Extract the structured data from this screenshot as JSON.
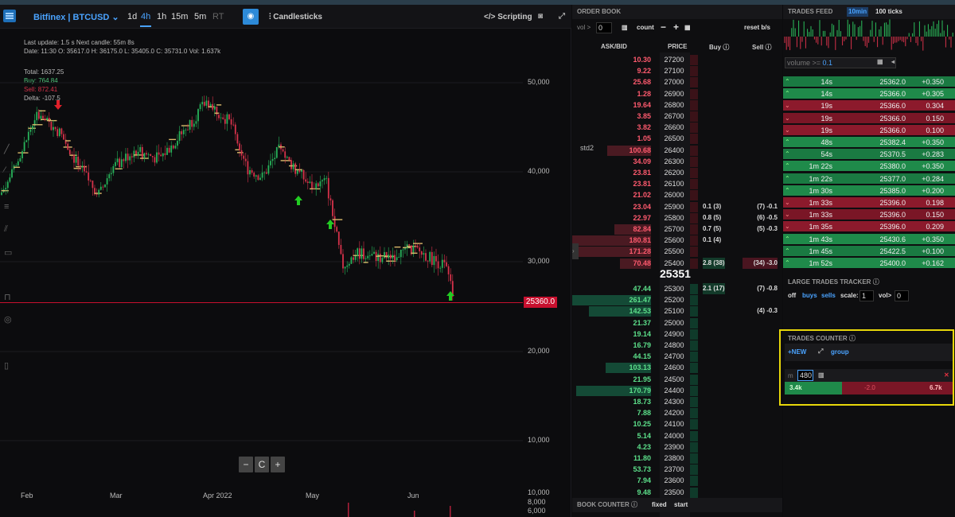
{
  "chart": {
    "symbol": "Bitfinex | BTCUSD",
    "timeframes": [
      {
        "label": "1d",
        "active": false
      },
      {
        "label": "4h",
        "active": true
      },
      {
        "label": "1h",
        "active": false
      },
      {
        "label": "15m",
        "active": false
      },
      {
        "label": "5m",
        "active": false
      },
      {
        "label": "RT",
        "active": false
      }
    ],
    "chart_type": "Candlesticks",
    "scripting": "Scripting",
    "last_update": "Last update: 1.5 s   Next candle: 55m 8s",
    "ohlc": "Date: 11:30 O: 35617.0 H: 36175.0 L: 35405.0 C: 35731.0 Vol: 1.637k",
    "total": "Total: 1637.25",
    "buy": "Buy: 764.84",
    "sell": "Sell: 872.41",
    "delta": "Delta: -107.5",
    "y_labels": [
      "50,000",
      "40,000",
      "30,000",
      "20,000",
      "10,000",
      "10,000",
      "8,000",
      "6,000"
    ],
    "x_labels": [
      "Feb",
      "Mar",
      "Apr 2022",
      "May",
      "Jun"
    ],
    "current_price": "25360.0",
    "zoom": [
      "−",
      "C",
      "+"
    ],
    "colors": {
      "up": "#27b35a",
      "down": "#d6324a",
      "price_line": "#c8102e",
      "accent": "#4aa3ff"
    }
  },
  "orderbook": {
    "title": "ORDER BOOK",
    "vol_label": "vol >",
    "vol_value": "0",
    "count_label": "count",
    "minus": "−",
    "plus": "+",
    "reset": "reset b/s",
    "headers": {
      "size": "ASK/BID",
      "price": "PRICE",
      "buy": "Buy",
      "sell": "Sell"
    },
    "std_label": "std2",
    "mid_price": "25351",
    "asks": [
      {
        "size": "10.30",
        "price": "27200"
      },
      {
        "size": "9.22",
        "price": "27100"
      },
      {
        "size": "25.68",
        "price": "27000"
      },
      {
        "size": "1.28",
        "price": "26900"
      },
      {
        "size": "19.64",
        "price": "26800"
      },
      {
        "size": "3.85",
        "price": "26700"
      },
      {
        "size": "3.82",
        "price": "26600"
      },
      {
        "size": "1.05",
        "price": "26500"
      },
      {
        "size": "100.68",
        "price": "26400"
      },
      {
        "size": "34.09",
        "price": "26300"
      },
      {
        "size": "23.81",
        "price": "26200"
      },
      {
        "size": "23.81",
        "price": "26100"
      },
      {
        "size": "21.02",
        "price": "26000"
      },
      {
        "size": "23.04",
        "price": "25900",
        "buy": "0.1 (3)",
        "sell": "(7) -0.1"
      },
      {
        "size": "22.97",
        "price": "25800",
        "buy": "0.8 (5)",
        "sell": "(6) -0.5"
      },
      {
        "size": "82.84",
        "price": "25700",
        "buy": "0.7 (5)",
        "sell": "(5) -0.3"
      },
      {
        "size": "180.81",
        "price": "25600",
        "buy": "0.1 (4)"
      },
      {
        "size": "171.28",
        "price": "25500"
      },
      {
        "size": "70.48",
        "price": "25400",
        "buy": "2.8 (38)",
        "sell": "(34) -3.0"
      }
    ],
    "bids": [
      {
        "size": "47.44",
        "price": "25300",
        "buy": "2.1 (17)",
        "sell": "(7) -0.8"
      },
      {
        "size": "261.47",
        "price": "25200"
      },
      {
        "size": "142.53",
        "price": "25100",
        "sell": "(4) -0.3"
      },
      {
        "size": "21.37",
        "price": "25000"
      },
      {
        "size": "19.14",
        "price": "24900"
      },
      {
        "size": "16.79",
        "price": "24800"
      },
      {
        "size": "44.15",
        "price": "24700"
      },
      {
        "size": "103.13",
        "price": "24600"
      },
      {
        "size": "21.95",
        "price": "24500"
      },
      {
        "size": "170.79",
        "price": "24400"
      },
      {
        "size": "18.73",
        "price": "24300"
      },
      {
        "size": "7.88",
        "price": "24200"
      },
      {
        "size": "10.25",
        "price": "24100"
      },
      {
        "size": "5.14",
        "price": "24000"
      },
      {
        "size": "4.23",
        "price": "23900"
      },
      {
        "size": "11.80",
        "price": "23800"
      },
      {
        "size": "53.73",
        "price": "23700"
      },
      {
        "size": "7.94",
        "price": "23600"
      },
      {
        "size": "9.48",
        "price": "23500"
      }
    ],
    "book_counter": "BOOK COUNTER",
    "fixed": "fixed",
    "start": "start"
  },
  "trades": {
    "title": "TRADES FEED",
    "tabs": [
      "10min",
      "100 ticks"
    ],
    "volume_label": "volume >=",
    "volume_value": "0.1",
    "rows": [
      {
        "t": "14s",
        "p": "25362.0",
        "q": "+0.350",
        "side": "buy"
      },
      {
        "t": "14s",
        "p": "25366.0",
        "q": "+0.305",
        "side": "buy"
      },
      {
        "t": "19s",
        "p": "25366.0",
        "q": "0.304",
        "side": "sell"
      },
      {
        "t": "19s",
        "p": "25366.0",
        "q": "0.150",
        "side": "sell"
      },
      {
        "t": "19s",
        "p": "25366.0",
        "q": "0.100",
        "side": "sell"
      },
      {
        "t": "48s",
        "p": "25382.4",
        "q": "+0.350",
        "side": "buy"
      },
      {
        "t": "54s",
        "p": "25370.5",
        "q": "+0.283",
        "side": "buy"
      },
      {
        "t": "1m 22s",
        "p": "25380.0",
        "q": "+0.350",
        "side": "buy"
      },
      {
        "t": "1m 22s",
        "p": "25377.0",
        "q": "+0.284",
        "side": "buy"
      },
      {
        "t": "1m 30s",
        "p": "25385.0",
        "q": "+0.200",
        "side": "buy"
      },
      {
        "t": "1m 33s",
        "p": "25396.0",
        "q": "0.198",
        "side": "sell"
      },
      {
        "t": "1m 33s",
        "p": "25396.0",
        "q": "0.150",
        "side": "sell"
      },
      {
        "t": "1m 35s",
        "p": "25396.0",
        "q": "0.209",
        "side": "sell"
      },
      {
        "t": "1m 43s",
        "p": "25430.6",
        "q": "+0.350",
        "side": "buy"
      },
      {
        "t": "1m 45s",
        "p": "25422.5",
        "q": "+0.100",
        "side": "buy"
      },
      {
        "t": "1m 52s",
        "p": "25400.0",
        "q": "+0.162",
        "side": "buy"
      }
    ],
    "large_title": "LARGE TRADES TRACKER",
    "off": "off",
    "buys": "buys",
    "sells": "sells",
    "scale_label": "scale:",
    "scale_value": "1",
    "vol_label": "vol>",
    "vol_value": "0",
    "counter_title": "TRADES COUNTER",
    "new": "NEW",
    "group": "group",
    "m_label": "m",
    "m_value": "480",
    "counter_buy": "3.4k",
    "counter_delta": "-2.0",
    "counter_sell": "6.7k"
  }
}
